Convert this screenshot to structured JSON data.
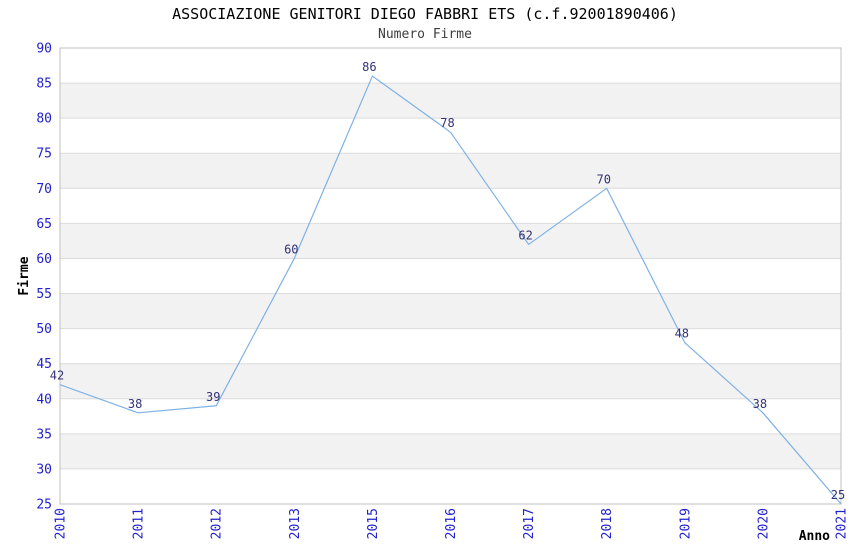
{
  "chart_data": {
    "type": "line",
    "title": "ASSOCIAZIONE GENITORI DIEGO FABBRI ETS (c.f.92001890406)",
    "subtitle": "Numero Firme",
    "xlabel": "Anno",
    "ylabel": "Firme",
    "categories": [
      "2010",
      "2011",
      "2012",
      "2013",
      "2015",
      "2016",
      "2017",
      "2018",
      "2019",
      "2020",
      "2021"
    ],
    "values": [
      42,
      38,
      39,
      60,
      86,
      78,
      62,
      70,
      48,
      38,
      25
    ],
    "ylim": [
      25,
      90
    ],
    "y_tick_step": 5,
    "y_ticks": [
      25,
      30,
      35,
      40,
      45,
      50,
      55,
      60,
      65,
      70,
      75,
      80,
      85,
      90
    ],
    "grid": "horizontal-only",
    "legend": "none",
    "show_data_labels": true,
    "x_tick_rotation": -90,
    "colors": {
      "line": "#7fb1e6",
      "tick_label": "#2222cc",
      "data_label": "#333377",
      "band": "#f2f2f2",
      "band_alt": "#ffffff",
      "gridline": "#dcdcdc",
      "border": "#c0c0c0",
      "title": "#000000",
      "subtitle": "#3d3d3d",
      "axis_title": "#000000"
    }
  }
}
